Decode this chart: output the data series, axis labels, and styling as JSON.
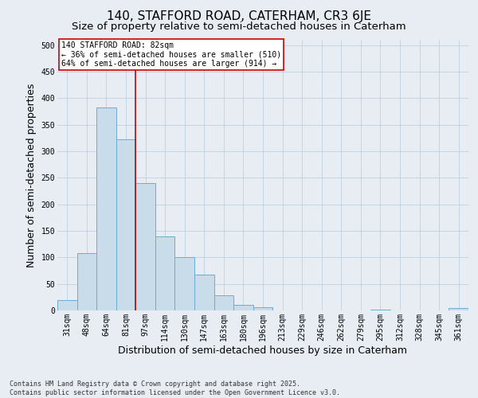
{
  "title_line1": "140, STAFFORD ROAD, CATERHAM, CR3 6JE",
  "title_line2": "Size of property relative to semi-detached houses in Caterham",
  "xlabel": "Distribution of semi-detached houses by size in Caterham",
  "ylabel": "Number of semi-detached properties",
  "categories": [
    "31sqm",
    "48sqm",
    "64sqm",
    "81sqm",
    "97sqm",
    "114sqm",
    "130sqm",
    "147sqm",
    "163sqm",
    "180sqm",
    "196sqm",
    "213sqm",
    "229sqm",
    "246sqm",
    "262sqm",
    "279sqm",
    "295sqm",
    "312sqm",
    "328sqm",
    "345sqm",
    "361sqm"
  ],
  "values": [
    19,
    108,
    383,
    323,
    240,
    140,
    100,
    68,
    29,
    10,
    6,
    0,
    0,
    0,
    0,
    0,
    2,
    0,
    0,
    0,
    4
  ],
  "bar_color": "#c9dcea",
  "bar_edge_color": "#6aadd5",
  "vline_x_index": 3,
  "vline_color": "#cc0000",
  "annotation_line1": "140 STAFFORD ROAD: 82sqm",
  "annotation_line2": "← 36% of semi-detached houses are smaller (510)",
  "annotation_line3": "64% of semi-detached houses are larger (914) →",
  "annotation_box_color": "#cc0000",
  "annotation_box_bg": "#ffffff",
  "ylim": [
    0,
    510
  ],
  "yticks": [
    0,
    50,
    100,
    150,
    200,
    250,
    300,
    350,
    400,
    450,
    500
  ],
  "grid_color": "#b8c8d8",
  "background_color": "#e8edf4",
  "footer_text": "Contains HM Land Registry data © Crown copyright and database right 2025.\nContains public sector information licensed under the Open Government Licence v3.0.",
  "title_fontsize": 11,
  "subtitle_fontsize": 9.5,
  "tick_fontsize": 7,
  "label_fontsize": 9,
  "footer_fontsize": 6,
  "annotation_fontsize": 7
}
